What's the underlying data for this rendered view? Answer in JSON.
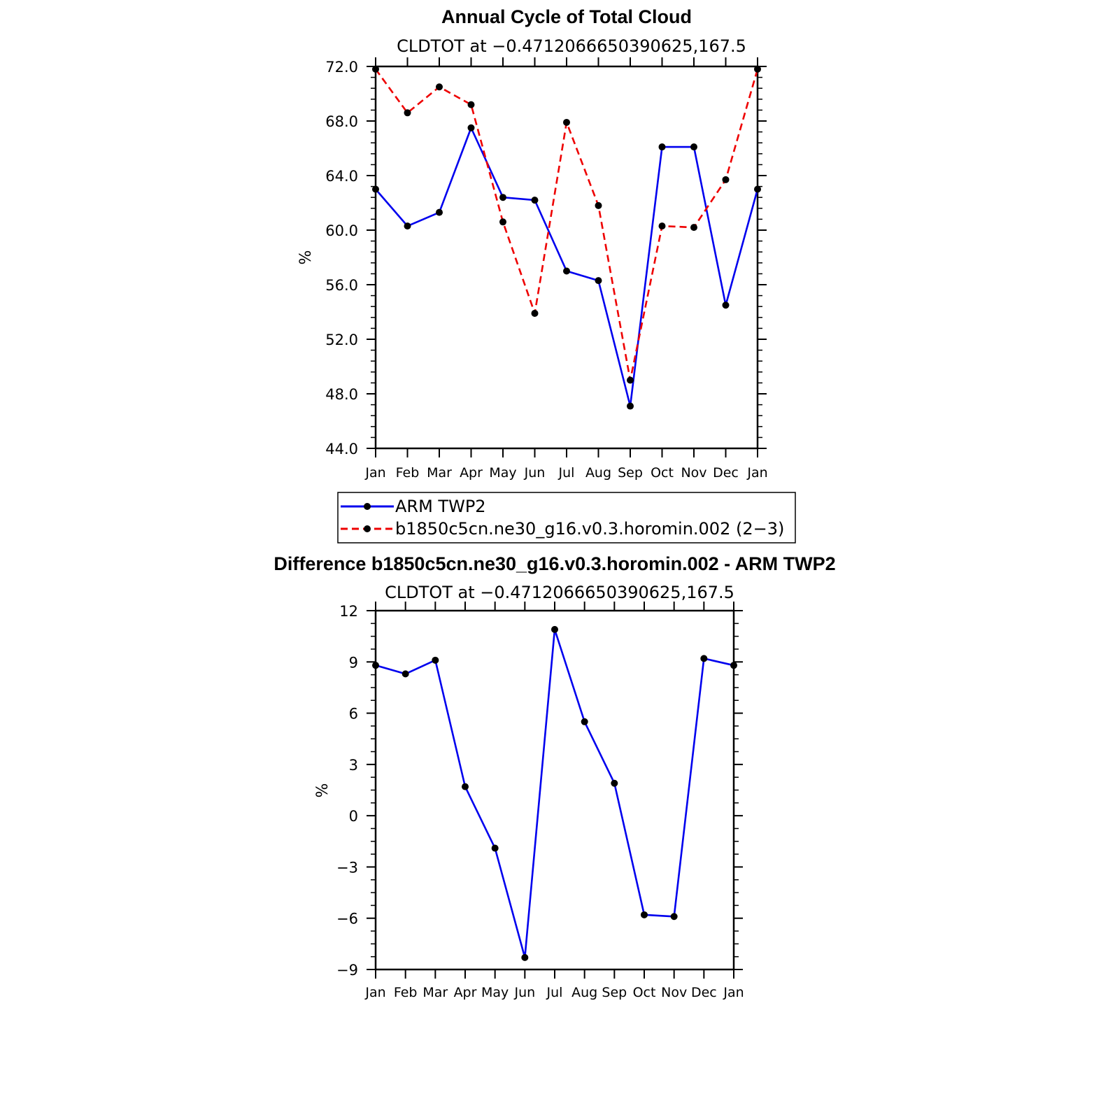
{
  "chart_data": [
    {
      "type": "line",
      "title": "Annual Cycle of Total Cloud",
      "subtitle": "CLDTOT at −0.4712066650390625,167.5",
      "ylabel": "%",
      "xlabel": "",
      "categories": [
        "Jan",
        "Feb",
        "Mar",
        "Apr",
        "May",
        "Jun",
        "Jul",
        "Aug",
        "Sep",
        "Oct",
        "Nov",
        "Dec",
        "Jan"
      ],
      "ylim": [
        44.0,
        72.0
      ],
      "yticks": [
        "44.0",
        "48.0",
        "52.0",
        "56.0",
        "60.0",
        "64.0",
        "68.0",
        "72.0"
      ],
      "grid": false,
      "legend_position": "bottom",
      "series": [
        {
          "name": "ARM TWP2",
          "color": "#0000ee",
          "style": "solid",
          "values": [
            63.0,
            60.3,
            61.3,
            67.5,
            62.4,
            62.2,
            57.0,
            56.3,
            47.1,
            66.1,
            66.1,
            54.5,
            63.0
          ]
        },
        {
          "name": "b1850c5cn.ne30_g16.v0.3.horomin.002 (2−3)",
          "color": "#ee0000",
          "style": "dashed",
          "values": [
            71.8,
            68.6,
            70.5,
            69.2,
            60.6,
            53.9,
            67.9,
            61.8,
            49.0,
            60.3,
            60.2,
            63.7,
            71.8
          ]
        }
      ]
    },
    {
      "type": "line",
      "title": "Difference b1850c5cn.ne30_g16.v0.3.horomin.002 - ARM TWP2",
      "subtitle": "CLDTOT at −0.4712066650390625,167.5",
      "ylabel": "%",
      "xlabel": "",
      "categories": [
        "Jan",
        "Feb",
        "Mar",
        "Apr",
        "May",
        "Jun",
        "Jul",
        "Aug",
        "Sep",
        "Oct",
        "Nov",
        "Dec",
        "Jan"
      ],
      "ylim": [
        -9,
        12
      ],
      "yticks": [
        "−9",
        "−6",
        "−3",
        "0",
        "3",
        "6",
        "9",
        "12"
      ],
      "grid": false,
      "series": [
        {
          "color": "#0000ee",
          "style": "solid",
          "values": [
            8.8,
            8.3,
            9.1,
            1.7,
            -1.9,
            -8.3,
            10.9,
            5.5,
            1.9,
            -5.8,
            -5.9,
            9.2,
            8.8
          ]
        }
      ]
    }
  ]
}
